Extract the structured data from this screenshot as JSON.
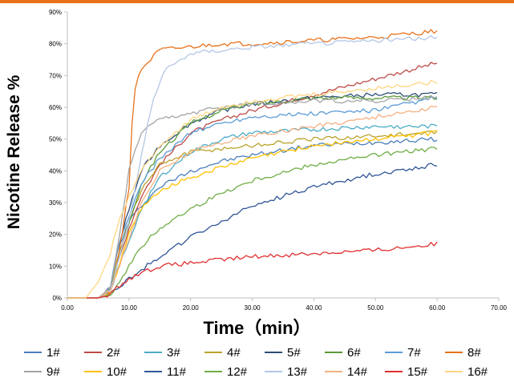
{
  "chart_data": {
    "type": "line",
    "xlabel": "Time（min）",
    "ylabel": "Nicotine Release %",
    "xlim": [
      0,
      70
    ],
    "ylim": [
      0,
      90
    ],
    "xticks": [
      "0.00",
      "10.00",
      "20.00",
      "30.00",
      "40.00",
      "50.00",
      "60.00",
      "70.00"
    ],
    "yticks": [
      "0%",
      "10%",
      "20%",
      "30%",
      "40%",
      "50%",
      "60%",
      "70%",
      "80%",
      "90%"
    ],
    "grid": false,
    "legend_position": "bottom",
    "series": [
      {
        "name": "1#",
        "color": "#4a7ebb",
        "x": [
          0,
          5,
          7,
          8,
          10,
          12,
          15,
          20,
          25,
          30,
          40,
          50,
          60
        ],
        "y": [
          0,
          0,
          3,
          14,
          24,
          29,
          35,
          40,
          43,
          45,
          48,
          49,
          50
        ]
      },
      {
        "name": "2#",
        "color": "#be4b48",
        "x": [
          0,
          5,
          7,
          8,
          10,
          12,
          15,
          20,
          25,
          30,
          40,
          50,
          60
        ],
        "y": [
          0,
          0,
          2,
          10,
          22,
          32,
          42,
          52,
          56,
          59,
          64,
          69,
          74
        ]
      },
      {
        "name": "3#",
        "color": "#4bacc6",
        "x": [
          0,
          5,
          7,
          8,
          10,
          12,
          15,
          20,
          25,
          30,
          40,
          50,
          60
        ],
        "y": [
          0,
          0,
          2,
          8,
          18,
          28,
          38,
          46,
          50,
          52,
          53,
          54,
          54
        ]
      },
      {
        "name": "4#",
        "color": "#b9a32b",
        "x": [
          0,
          5,
          7,
          8,
          10,
          12,
          15,
          20,
          25,
          30,
          40,
          50,
          60
        ],
        "y": [
          0,
          0,
          3,
          12,
          24,
          34,
          42,
          46,
          47,
          48,
          50,
          51,
          52
        ]
      },
      {
        "name": "5#",
        "color": "#2c4d75",
        "x": [
          0,
          5,
          7,
          8,
          10,
          12,
          15,
          20,
          25,
          30,
          40,
          50,
          60
        ],
        "y": [
          0,
          0,
          3,
          14,
          28,
          40,
          48,
          55,
          59,
          61,
          63,
          64,
          64
        ]
      },
      {
        "name": "6#",
        "color": "#5a9a3a",
        "x": [
          0,
          5,
          7,
          8,
          10,
          12,
          15,
          20,
          25,
          30,
          40,
          50,
          60
        ],
        "y": [
          0,
          0,
          2,
          10,
          24,
          36,
          46,
          55,
          59,
          61,
          63,
          63,
          63
        ]
      },
      {
        "name": "7#",
        "color": "#5b9bd5",
        "x": [
          0,
          5,
          7,
          8,
          10,
          12,
          15,
          20,
          25,
          30,
          40,
          50,
          60
        ],
        "y": [
          0,
          0,
          3,
          14,
          26,
          36,
          44,
          52,
          55,
          57,
          58,
          59,
          63
        ]
      },
      {
        "name": "8#",
        "color": "#e8711a",
        "x": [
          0,
          5,
          7,
          8,
          9,
          10,
          10.5,
          11,
          12,
          15,
          20,
          25,
          30,
          40,
          50,
          60
        ],
        "y": [
          0,
          0,
          2,
          10,
          22,
          35,
          55,
          66,
          72,
          78,
          79,
          80,
          80,
          81,
          82,
          84
        ]
      },
      {
        "name": "9#",
        "color": "#a5a5a5",
        "x": [
          0,
          5,
          7,
          8,
          10,
          12,
          15,
          20,
          25,
          30,
          40,
          50,
          60
        ],
        "y": [
          0,
          0,
          3,
          14,
          40,
          52,
          56,
          58,
          60,
          61,
          62,
          62,
          63
        ]
      },
      {
        "name": "10#",
        "color": "#ffc000",
        "x": [
          0,
          5,
          7,
          8,
          10,
          12,
          15,
          20,
          25,
          30,
          40,
          50,
          60
        ],
        "y": [
          0,
          0,
          2,
          8,
          20,
          28,
          34,
          38,
          41,
          44,
          48,
          50,
          52
        ]
      },
      {
        "name": "11#",
        "color": "#2f5597",
        "x": [
          0,
          5,
          7,
          8,
          10,
          12,
          15,
          20,
          25,
          30,
          40,
          50,
          60
        ],
        "y": [
          0,
          0,
          1,
          3,
          6,
          9,
          13,
          19,
          24,
          29,
          35,
          39,
          42
        ]
      },
      {
        "name": "12#",
        "color": "#70ad47",
        "x": [
          0,
          5,
          7,
          8,
          10,
          12,
          15,
          20,
          25,
          30,
          40,
          50,
          60
        ],
        "y": [
          0,
          0,
          1,
          4,
          10,
          16,
          22,
          28,
          33,
          37,
          42,
          45,
          47
        ]
      },
      {
        "name": "13#",
        "color": "#b4c7e7",
        "x": [
          0,
          5,
          7,
          8,
          10,
          12,
          14,
          16,
          20,
          25,
          30,
          40,
          50,
          60
        ],
        "y": [
          0,
          0,
          2,
          10,
          24,
          45,
          63,
          72,
          77,
          78,
          79,
          80,
          81,
          82
        ]
      },
      {
        "name": "14#",
        "color": "#f4b183",
        "x": [
          0,
          5,
          7,
          8,
          10,
          12,
          15,
          20,
          25,
          30,
          40,
          50,
          60
        ],
        "y": [
          0,
          0,
          2,
          8,
          18,
          30,
          40,
          46,
          49,
          51,
          54,
          57,
          60
        ]
      },
      {
        "name": "15#",
        "color": "#e03030",
        "x": [
          0,
          5,
          7,
          8,
          9,
          10,
          12,
          15,
          20,
          25,
          30,
          40,
          50,
          60
        ],
        "y": [
          0,
          0,
          1,
          3,
          5,
          6,
          8,
          10,
          11,
          12,
          13,
          14,
          15,
          17
        ]
      },
      {
        "name": "16#",
        "color": "#ffd580",
        "x": [
          0,
          3,
          5,
          7,
          8,
          10,
          12,
          15,
          20,
          25,
          30,
          40,
          50,
          60
        ],
        "y": [
          0,
          0,
          5,
          14,
          22,
          32,
          40,
          48,
          56,
          60,
          62,
          64,
          66,
          68
        ]
      }
    ]
  }
}
